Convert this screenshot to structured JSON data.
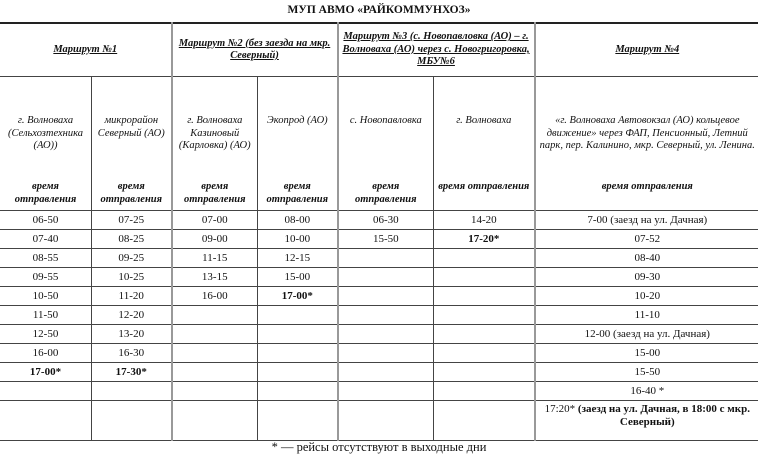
{
  "title": "МУП АВМО «РАЙКОММУНХОЗ»",
  "routes": [
    {
      "label": "Маршрут №1"
    },
    {
      "label": "Маршрут №2 (без заезда на мкр. Северный)"
    },
    {
      "label": "Маршрут №3 (с. Новопавловка (АО) – г. Волноваха (АО) через с. Новогригоровка, МБУ№6"
    },
    {
      "label": "Маршрут №4"
    }
  ],
  "stops": [
    "г. Волноваха (Сельхозтехника (АО))",
    "микрорайон Северный (АО)",
    "г. Волноваха Казиновый (Карловка) (АО)",
    "Экопрод (АО)",
    "с. Новопавловка",
    "г. Волноваха",
    "«г. Волноваха Автовокзал (АО) кольцевое движение» через ФАП, Пенсионный, Летний парк, пер. Калинино, мкр. Северный, ул. Ленина."
  ],
  "departure_label": "время отправления",
  "rows": [
    [
      {
        "t": "06-50"
      },
      {
        "t": "07-25"
      },
      {
        "t": "07-00"
      },
      {
        "t": "08-00"
      },
      {
        "t": "06-30"
      },
      {
        "t": "14-20"
      },
      {
        "t": "7-00 (заезд на ул. Дачная)"
      }
    ],
    [
      {
        "t": "07-40"
      },
      {
        "t": "08-25"
      },
      {
        "t": "09-00"
      },
      {
        "t": "10-00"
      },
      {
        "t": "15-50"
      },
      {
        "t": "17-20*",
        "b": true
      },
      {
        "t": "07-52"
      }
    ],
    [
      {
        "t": "08-55"
      },
      {
        "t": "09-25"
      },
      {
        "t": "11-15"
      },
      {
        "t": "12-15"
      },
      {
        "t": ""
      },
      {
        "t": ""
      },
      {
        "t": "08-40"
      }
    ],
    [
      {
        "t": "09-55"
      },
      {
        "t": "10-25"
      },
      {
        "t": "13-15"
      },
      {
        "t": "15-00"
      },
      {
        "t": ""
      },
      {
        "t": ""
      },
      {
        "t": "09-30"
      }
    ],
    [
      {
        "t": "10-50"
      },
      {
        "t": "11-20"
      },
      {
        "t": "16-00"
      },
      {
        "t": "17-00*",
        "b": true
      },
      {
        "t": ""
      },
      {
        "t": ""
      },
      {
        "t": "10-20"
      }
    ],
    [
      {
        "t": "11-50"
      },
      {
        "t": "12-20"
      },
      {
        "t": ""
      },
      {
        "t": ""
      },
      {
        "t": ""
      },
      {
        "t": ""
      },
      {
        "t": "11-10"
      }
    ],
    [
      {
        "t": "12-50"
      },
      {
        "t": "13-20"
      },
      {
        "t": ""
      },
      {
        "t": ""
      },
      {
        "t": ""
      },
      {
        "t": ""
      },
      {
        "t": "12-00 (заезд на ул. Дачная)"
      }
    ],
    [
      {
        "t": "16-00"
      },
      {
        "t": "16-30"
      },
      {
        "t": ""
      },
      {
        "t": ""
      },
      {
        "t": ""
      },
      {
        "t": ""
      },
      {
        "t": "15-00"
      }
    ],
    [
      {
        "t": "17-00*",
        "b": true
      },
      {
        "t": "17-30*",
        "b": true
      },
      {
        "t": ""
      },
      {
        "t": ""
      },
      {
        "t": ""
      },
      {
        "t": ""
      },
      {
        "t": "15-50"
      }
    ],
    [
      {
        "t": ""
      },
      {
        "t": ""
      },
      {
        "t": ""
      },
      {
        "t": ""
      },
      {
        "t": ""
      },
      {
        "t": ""
      },
      {
        "t": "16-40 *"
      }
    ],
    [
      {
        "t": ""
      },
      {
        "t": ""
      },
      {
        "t": ""
      },
      {
        "t": ""
      },
      {
        "t": ""
      },
      {
        "t": ""
      },
      {
        "t": "17:20*",
        "extra": "(заезд на ул. Дачная, в 18:00 с мкр. Северный)"
      }
    ]
  ],
  "footnote": "* — рейсы отсутствуют в выходные дни"
}
